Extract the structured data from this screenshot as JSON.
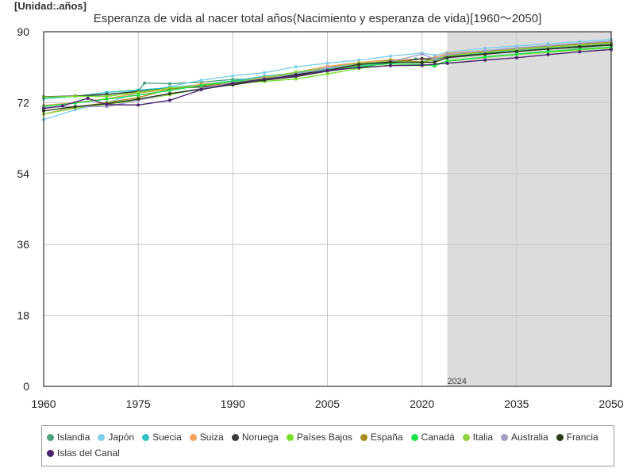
{
  "unit_label": "[Unidad:.años]",
  "chart_data": {
    "type": "line",
    "title": "Esperanza de vida al nacer total años(Nacimiento y esperanza de vida)[1960～2050]",
    "xlabel": "",
    "ylabel": "",
    "xlim": [
      1960,
      2050
    ],
    "ylim": [
      0,
      90
    ],
    "x_ticks": [
      1960,
      1975,
      1990,
      2005,
      2020,
      2035,
      2050
    ],
    "y_ticks": [
      0,
      18,
      36,
      54,
      72,
      90
    ],
    "projection_start": 2024,
    "projection_label": "2024",
    "projection_color": "#dcdcdc",
    "grid": true,
    "legend_position": "bottom",
    "series": [
      {
        "name": "Islandia",
        "color": "#4ca27a",
        "points": [
          [
            1960,
            73.4
          ],
          [
            1965,
            73.6
          ],
          [
            1970,
            74.0
          ],
          [
            1975,
            75.0
          ],
          [
            1976,
            77.0
          ],
          [
            1980,
            76.8
          ],
          [
            1985,
            77.2
          ],
          [
            1990,
            77.9
          ],
          [
            1995,
            78.1
          ],
          [
            2000,
            79.6
          ],
          [
            2005,
            81.2
          ],
          [
            2010,
            81.8
          ],
          [
            2015,
            82.5
          ],
          [
            2019,
            83.1
          ],
          [
            2020,
            83.1
          ],
          [
            2022,
            82.7
          ],
          [
            2024,
            83.8
          ],
          [
            2030,
            84.6
          ],
          [
            2035,
            85.2
          ],
          [
            2040,
            85.8
          ],
          [
            2045,
            86.3
          ],
          [
            2050,
            86.8
          ]
        ]
      },
      {
        "name": "Japón",
        "color": "#7fd0ee",
        "points": [
          [
            1960,
            67.7
          ],
          [
            1965,
            70.2
          ],
          [
            1970,
            72.0
          ],
          [
            1975,
            74.4
          ],
          [
            1980,
            76.1
          ],
          [
            1985,
            77.7
          ],
          [
            1990,
            78.8
          ],
          [
            1995,
            79.6
          ],
          [
            2000,
            81.1
          ],
          [
            2005,
            82.0
          ],
          [
            2010,
            82.8
          ],
          [
            2015,
            83.8
          ],
          [
            2020,
            84.6
          ],
          [
            2022,
            84.0
          ],
          [
            2024,
            84.8
          ],
          [
            2030,
            85.8
          ],
          [
            2035,
            86.4
          ],
          [
            2040,
            87.0
          ],
          [
            2045,
            87.5
          ],
          [
            2050,
            88.0
          ]
        ]
      },
      {
        "name": "Suecia",
        "color": "#2ec2c2",
        "points": [
          [
            1960,
            73.0
          ],
          [
            1965,
            73.6
          ],
          [
            1970,
            74.6
          ],
          [
            1975,
            75.2
          ],
          [
            1980,
            75.8
          ],
          [
            1985,
            76.6
          ],
          [
            1990,
            77.5
          ],
          [
            1995,
            78.7
          ],
          [
            2000,
            79.6
          ],
          [
            2005,
            80.5
          ],
          [
            2010,
            81.5
          ],
          [
            2015,
            82.2
          ],
          [
            2020,
            82.4
          ],
          [
            2022,
            83.1
          ],
          [
            2024,
            83.7
          ],
          [
            2030,
            84.5
          ],
          [
            2035,
            85.1
          ],
          [
            2040,
            85.7
          ],
          [
            2045,
            86.2
          ],
          [
            2050,
            86.8
          ]
        ]
      },
      {
        "name": "Suiza",
        "color": "#f2a25c",
        "points": [
          [
            1960,
            71.3
          ],
          [
            1965,
            72.0
          ],
          [
            1970,
            73.0
          ],
          [
            1975,
            74.4
          ],
          [
            1980,
            75.4
          ],
          [
            1985,
            76.7
          ],
          [
            1990,
            77.2
          ],
          [
            1995,
            78.4
          ],
          [
            2000,
            79.7
          ],
          [
            2005,
            81.2
          ],
          [
            2010,
            82.2
          ],
          [
            2015,
            82.9
          ],
          [
            2020,
            83.0
          ],
          [
            2022,
            83.5
          ],
          [
            2024,
            84.5
          ],
          [
            2030,
            85.2
          ],
          [
            2035,
            85.8
          ],
          [
            2040,
            86.4
          ],
          [
            2045,
            86.9
          ],
          [
            2050,
            87.4
          ]
        ]
      },
      {
        "name": "Noruega",
        "color": "#3c3c3c",
        "points": [
          [
            1960,
            73.5
          ],
          [
            1965,
            73.7
          ],
          [
            1970,
            74.1
          ],
          [
            1975,
            74.8
          ],
          [
            1980,
            75.7
          ],
          [
            1985,
            76.0
          ],
          [
            1990,
            76.5
          ],
          [
            1995,
            77.7
          ],
          [
            2000,
            78.6
          ],
          [
            2005,
            80.0
          ],
          [
            2010,
            81.0
          ],
          [
            2015,
            82.1
          ],
          [
            2020,
            83.2
          ],
          [
            2022,
            83.1
          ],
          [
            2024,
            83.6
          ],
          [
            2030,
            84.4
          ],
          [
            2035,
            85.0
          ],
          [
            2040,
            85.6
          ],
          [
            2045,
            86.1
          ],
          [
            2050,
            86.6
          ]
        ]
      },
      {
        "name": "Países Bajos",
        "color": "#7adf2a",
        "points": [
          [
            1960,
            73.4
          ],
          [
            1965,
            73.6
          ],
          [
            1970,
            73.6
          ],
          [
            1975,
            74.6
          ],
          [
            1980,
            75.7
          ],
          [
            1985,
            76.3
          ],
          [
            1990,
            76.9
          ],
          [
            1995,
            77.4
          ],
          [
            2000,
            78.0
          ],
          [
            2005,
            79.3
          ],
          [
            2010,
            80.7
          ],
          [
            2015,
            81.5
          ],
          [
            2020,
            81.4
          ],
          [
            2022,
            81.7
          ],
          [
            2024,
            82.5
          ],
          [
            2030,
            83.5
          ],
          [
            2035,
            84.2
          ],
          [
            2040,
            84.8
          ],
          [
            2045,
            85.4
          ],
          [
            2050,
            85.9
          ]
        ]
      },
      {
        "name": "España",
        "color": "#a88a1e",
        "points": [
          [
            1960,
            69.1
          ],
          [
            1965,
            70.8
          ],
          [
            1970,
            72.0
          ],
          [
            1975,
            73.3
          ],
          [
            1980,
            75.4
          ],
          [
            1985,
            76.3
          ],
          [
            1990,
            76.9
          ],
          [
            1995,
            78.0
          ],
          [
            2000,
            79.0
          ],
          [
            2005,
            80.2
          ],
          [
            2010,
            81.6
          ],
          [
            2015,
            82.8
          ],
          [
            2020,
            82.3
          ],
          [
            2022,
            83.2
          ],
          [
            2024,
            84.0
          ],
          [
            2030,
            85.0
          ],
          [
            2035,
            85.7
          ],
          [
            2040,
            86.3
          ],
          [
            2045,
            86.9
          ],
          [
            2050,
            87.4
          ]
        ]
      },
      {
        "name": "Canadá",
        "color": "#1ee04a",
        "points": [
          [
            1960,
            71.1
          ],
          [
            1965,
            71.9
          ],
          [
            1970,
            72.9
          ],
          [
            1975,
            73.9
          ],
          [
            1980,
            75.1
          ],
          [
            1985,
            76.4
          ],
          [
            1990,
            77.4
          ],
          [
            1995,
            78.0
          ],
          [
            2000,
            79.2
          ],
          [
            2005,
            80.2
          ],
          [
            2010,
            81.2
          ],
          [
            2015,
            81.9
          ],
          [
            2020,
            81.7
          ],
          [
            2022,
            81.3
          ],
          [
            2024,
            82.6
          ],
          [
            2030,
            83.6
          ],
          [
            2035,
            84.3
          ],
          [
            2040,
            85.0
          ],
          [
            2045,
            85.6
          ],
          [
            2050,
            86.1
          ]
        ]
      },
      {
        "name": "Italia",
        "color": "#8cd43c",
        "points": [
          [
            1960,
            69.1
          ],
          [
            1965,
            70.6
          ],
          [
            1970,
            71.6
          ],
          [
            1975,
            72.7
          ],
          [
            1980,
            74.0
          ],
          [
            1985,
            75.6
          ],
          [
            1990,
            77.0
          ],
          [
            1995,
            78.2
          ],
          [
            2000,
            79.8
          ],
          [
            2005,
            80.8
          ],
          [
            2010,
            82.0
          ],
          [
            2015,
            82.5
          ],
          [
            2020,
            82.2
          ],
          [
            2022,
            83.0
          ],
          [
            2024,
            83.9
          ],
          [
            2030,
            84.8
          ],
          [
            2035,
            85.5
          ],
          [
            2040,
            86.1
          ],
          [
            2045,
            86.6
          ],
          [
            2050,
            87.1
          ]
        ]
      },
      {
        "name": "Australia",
        "color": "#a0a0c8",
        "points": [
          [
            1960,
            70.8
          ],
          [
            1965,
            71.0
          ],
          [
            1970,
            71.0
          ],
          [
            1975,
            72.6
          ],
          [
            1980,
            74.3
          ],
          [
            1985,
            75.6
          ],
          [
            1990,
            77.0
          ],
          [
            1995,
            78.0
          ],
          [
            2000,
            79.2
          ],
          [
            2005,
            80.8
          ],
          [
            2010,
            81.7
          ],
          [
            2015,
            82.4
          ],
          [
            2020,
            84.3
          ],
          [
            2022,
            83.1
          ],
          [
            2024,
            84.2
          ],
          [
            2030,
            85.2
          ],
          [
            2035,
            85.9
          ],
          [
            2040,
            86.5
          ],
          [
            2045,
            87.1
          ],
          [
            2050,
            87.6
          ]
        ]
      },
      {
        "name": "Francia",
        "color": "#2a3a1a",
        "points": [
          [
            1960,
            69.9
          ],
          [
            1965,
            71.0
          ],
          [
            1970,
            71.7
          ],
          [
            1975,
            72.9
          ],
          [
            1980,
            74.3
          ],
          [
            1985,
            75.4
          ],
          [
            1990,
            76.6
          ],
          [
            1995,
            77.7
          ],
          [
            2000,
            79.1
          ],
          [
            2005,
            80.2
          ],
          [
            2010,
            81.7
          ],
          [
            2015,
            82.3
          ],
          [
            2020,
            82.2
          ],
          [
            2022,
            82.3
          ],
          [
            2024,
            83.4
          ],
          [
            2030,
            84.3
          ],
          [
            2035,
            85.0
          ],
          [
            2040,
            85.6
          ],
          [
            2045,
            86.2
          ],
          [
            2050,
            86.7
          ]
        ]
      },
      {
        "name": "Islas del Canal",
        "color": "#4a2270",
        "points": [
          [
            1960,
            70.5
          ],
          [
            1963,
            71.2
          ],
          [
            1967,
            73.1
          ],
          [
            1970,
            71.5
          ],
          [
            1975,
            71.4
          ],
          [
            1980,
            72.6
          ],
          [
            1985,
            75.3
          ],
          [
            1990,
            76.9
          ],
          [
            1995,
            78.0
          ],
          [
            2000,
            78.8
          ],
          [
            2005,
            80.2
          ],
          [
            2010,
            80.9
          ],
          [
            2015,
            81.4
          ],
          [
            2020,
            81.5
          ],
          [
            2024,
            82.0
          ],
          [
            2030,
            82.8
          ],
          [
            2035,
            83.4
          ],
          [
            2040,
            84.2
          ],
          [
            2045,
            84.9
          ],
          [
            2050,
            85.5
          ]
        ]
      }
    ]
  }
}
